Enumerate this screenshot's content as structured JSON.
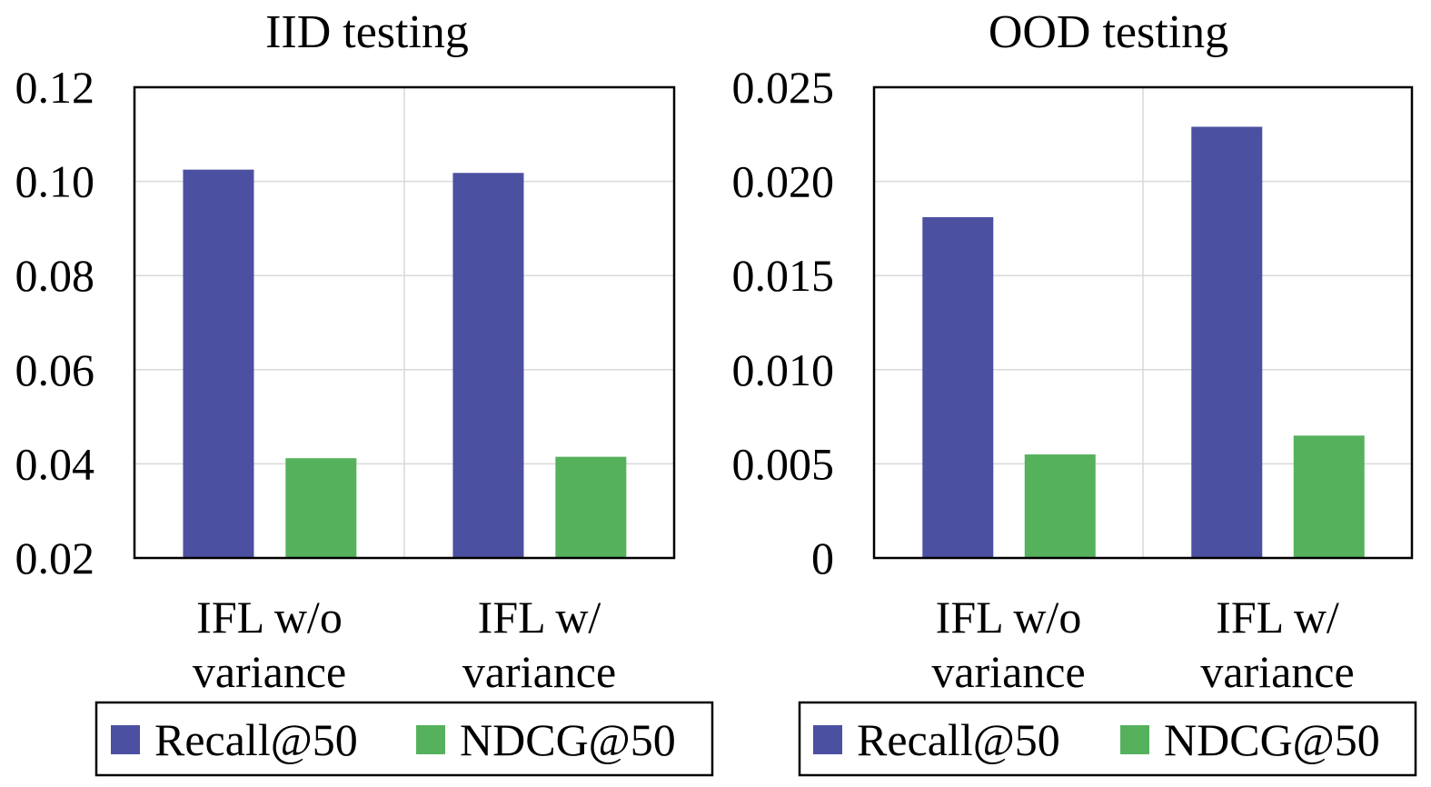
{
  "colors": {
    "recall": "#4b50a1",
    "ndcg": "#56b15d"
  },
  "chart_data": [
    {
      "type": "bar",
      "title": "IID testing",
      "categories": [
        [
          "IFL w/o",
          "variance"
        ],
        [
          "IFL w/",
          "variance"
        ]
      ],
      "series": [
        {
          "name": "Recall@50",
          "values": [
            0.1025,
            0.1018
          ]
        },
        {
          "name": "NDCG@50",
          "values": [
            0.0412,
            0.0415
          ]
        }
      ],
      "ylim": [
        0.02,
        0.12
      ],
      "yticks": [
        "0.12",
        "0.10",
        "0.08",
        "0.06",
        "0.04",
        "0.02"
      ],
      "ytick_values": [
        0.12,
        0.1,
        0.08,
        0.06,
        0.04,
        0.02
      ],
      "grid": true,
      "legend": "bottom"
    },
    {
      "type": "bar",
      "title": "OOD testing",
      "categories": [
        [
          "IFL w/o",
          "variance"
        ],
        [
          "IFL w/",
          "variance"
        ]
      ],
      "series": [
        {
          "name": "Recall@50",
          "values": [
            0.0181,
            0.0229
          ]
        },
        {
          "name": "NDCG@50",
          "values": [
            0.0055,
            0.0065
          ]
        }
      ],
      "ylim": [
        0,
        0.025
      ],
      "yticks": [
        "0.025",
        "0.020",
        "0.015",
        "0.010",
        "0.005",
        "0"
      ],
      "ytick_values": [
        0.025,
        0.02,
        0.015,
        0.01,
        0.005,
        0
      ],
      "grid": true,
      "legend": "bottom"
    }
  ]
}
